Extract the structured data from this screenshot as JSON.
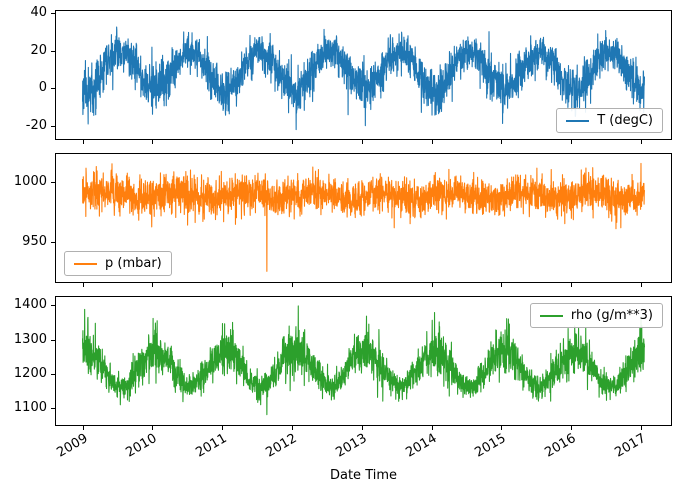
{
  "figure": {
    "background": "#ffffff",
    "spine_color": "#000000"
  },
  "chart_data": {
    "type": "line",
    "title": "",
    "xlabel": "Date Time",
    "legend_border_color": "#b0b0b0",
    "x_range": [
      2009.0,
      2017.05
    ],
    "xlim": [
      2008.62,
      2017.43
    ],
    "xticks": [
      2009,
      2010,
      2011,
      2012,
      2013,
      2014,
      2015,
      2016,
      2017
    ],
    "panels": [
      {
        "name": "temperature",
        "legend": "T (degC)",
        "legend_position": "lower right",
        "color": "#1f77b4",
        "ylim": [
          -27,
          41
        ],
        "yticks": [
          -20,
          0,
          20,
          40
        ],
        "seasonal_mean": 9.5,
        "seasonal_amplitude": 10,
        "seasonal_phase": 0.3,
        "noise_std": 5.5,
        "noise_seasonality": 0.15,
        "outlier_rate": 0.003,
        "outlier_scale": 6,
        "outlier_sign": -1,
        "points": 2900,
        "seed": 11,
        "spikes": [
          {
            "t": 2009.08,
            "v": -19
          },
          {
            "t": 2012.06,
            "v": -22
          },
          {
            "t": 2016.06,
            "v": -15
          }
        ]
      },
      {
        "name": "pressure",
        "legend": "p (mbar)",
        "legend_position": "lower left",
        "color": "#ff7f0e",
        "ylim": [
          916,
          1024
        ],
        "yticks": [
          950,
          1000
        ],
        "seasonal_mean": 989,
        "seasonal_amplitude": 3,
        "seasonal_phase": 0.05,
        "noise_std": 7.5,
        "noise_seasonality": 0,
        "outlier_rate": 0.006,
        "outlier_scale": 9,
        "outlier_sign": -1,
        "points": 2900,
        "seed": 23,
        "spikes": [
          {
            "t": 2009.05,
            "v": 1012
          },
          {
            "t": 2011.64,
            "v": 925
          },
          {
            "t": 2012.3,
            "v": 1013
          },
          {
            "t": 2017.0,
            "v": 1016
          }
        ]
      },
      {
        "name": "density",
        "legend": "rho (g/m**3)",
        "legend_position": "upper right",
        "color": "#2ca02c",
        "ylim": [
          1052,
          1424
        ],
        "yticks": [
          1100,
          1200,
          1300,
          1400
        ],
        "seasonal_mean": 1216,
        "seasonal_amplitude": 52,
        "seasonal_phase": 0.8,
        "noise_std": 26,
        "noise_seasonality": -0.3,
        "outlier_rate": 0.003,
        "outlier_scale": 28,
        "outlier_sign": 0,
        "points": 2900,
        "seed": 37,
        "spikes": [
          {
            "t": 2009.03,
            "v": 1388
          },
          {
            "t": 2010.07,
            "v": 1355
          },
          {
            "t": 2011.15,
            "v": 1350
          },
          {
            "t": 2011.64,
            "v": 1082
          },
          {
            "t": 2012.09,
            "v": 1398
          },
          {
            "t": 2013.1,
            "v": 1345
          },
          {
            "t": 2015.1,
            "v": 1360
          },
          {
            "t": 2016.05,
            "v": 1340
          },
          {
            "t": 2017.0,
            "v": 1365
          }
        ]
      }
    ]
  }
}
